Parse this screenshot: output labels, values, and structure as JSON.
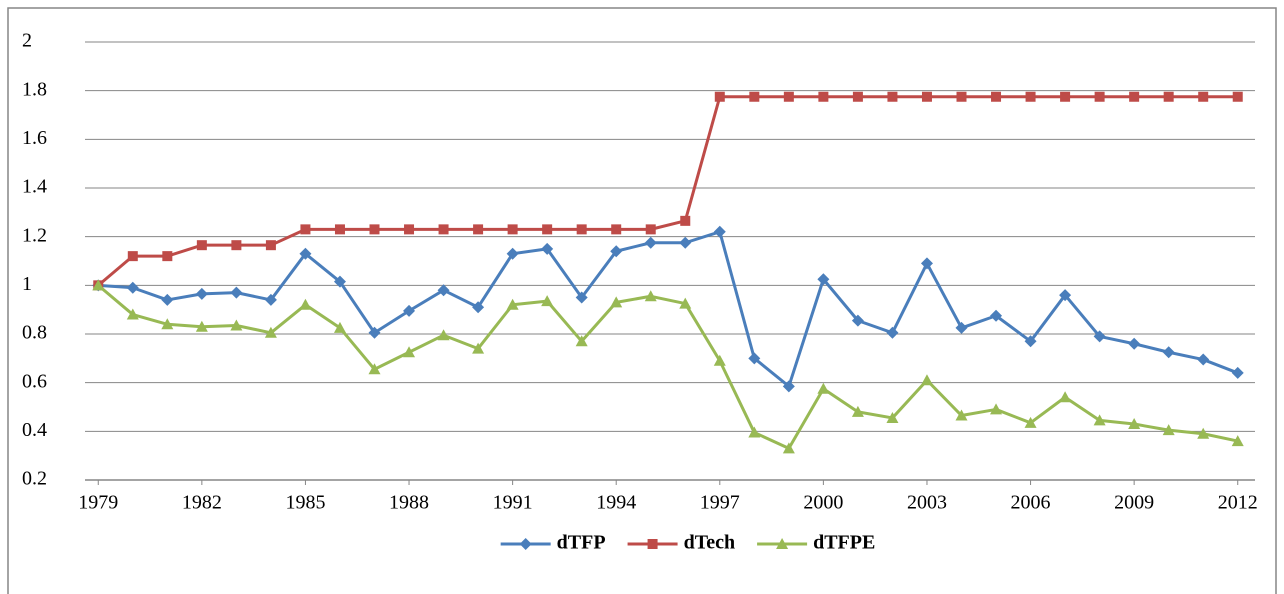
{
  "chart_data": {
    "type": "line",
    "x": [
      1979,
      1980,
      1981,
      1982,
      1983,
      1984,
      1985,
      1986,
      1987,
      1988,
      1989,
      1990,
      1991,
      1992,
      1993,
      1994,
      1995,
      1996,
      1997,
      1998,
      1999,
      2000,
      2001,
      2002,
      2003,
      2004,
      2005,
      2006,
      2007,
      2008,
      2009,
      2010,
      2011,
      2012
    ],
    "xlim": [
      1978.5,
      2012.5
    ],
    "xticks": [
      1979,
      1982,
      1985,
      1988,
      1991,
      1994,
      1997,
      2000,
      2003,
      2006,
      2009,
      2012
    ],
    "ylim": [
      0.2,
      2
    ],
    "yticks": [
      0.2,
      0.4,
      0.6,
      0.8,
      1,
      1.2,
      1.4,
      1.6,
      1.8,
      2
    ],
    "grid": true,
    "legend": "bottom",
    "series": [
      {
        "name": "dTFP",
        "color": "#4a7ebb",
        "marker": "diamond",
        "values": [
          1.0,
          0.99,
          0.94,
          0.965,
          0.97,
          0.94,
          1.13,
          1.015,
          0.805,
          0.895,
          0.98,
          0.91,
          1.13,
          1.15,
          0.95,
          1.14,
          1.175,
          1.175,
          1.22,
          0.7,
          0.585,
          1.025,
          0.855,
          0.805,
          1.09,
          0.825,
          0.875,
          0.77,
          0.96,
          0.79,
          0.76,
          0.725,
          0.695,
          0.64
        ]
      },
      {
        "name": "dTech",
        "color": "#be4b48",
        "marker": "square",
        "values": [
          1.0,
          1.12,
          1.12,
          1.165,
          1.165,
          1.165,
          1.23,
          1.23,
          1.23,
          1.23,
          1.23,
          1.23,
          1.23,
          1.23,
          1.23,
          1.23,
          1.23,
          1.265,
          1.775,
          1.775,
          1.775,
          1.775,
          1.775,
          1.775,
          1.775,
          1.775,
          1.775,
          1.775,
          1.775,
          1.775,
          1.775,
          1.775,
          1.775,
          1.775
        ]
      },
      {
        "name": "dTFPE",
        "color": "#98b954",
        "marker": "triangle",
        "values": [
          1.0,
          0.88,
          0.84,
          0.83,
          0.835,
          0.805,
          0.92,
          0.825,
          0.655,
          0.725,
          0.795,
          0.74,
          0.92,
          0.935,
          0.77,
          0.93,
          0.955,
          0.925,
          0.69,
          0.395,
          0.33,
          0.575,
          0.48,
          0.455,
          0.61,
          0.465,
          0.49,
          0.435,
          0.54,
          0.445,
          0.43,
          0.405,
          0.39,
          0.36
        ]
      }
    ]
  }
}
